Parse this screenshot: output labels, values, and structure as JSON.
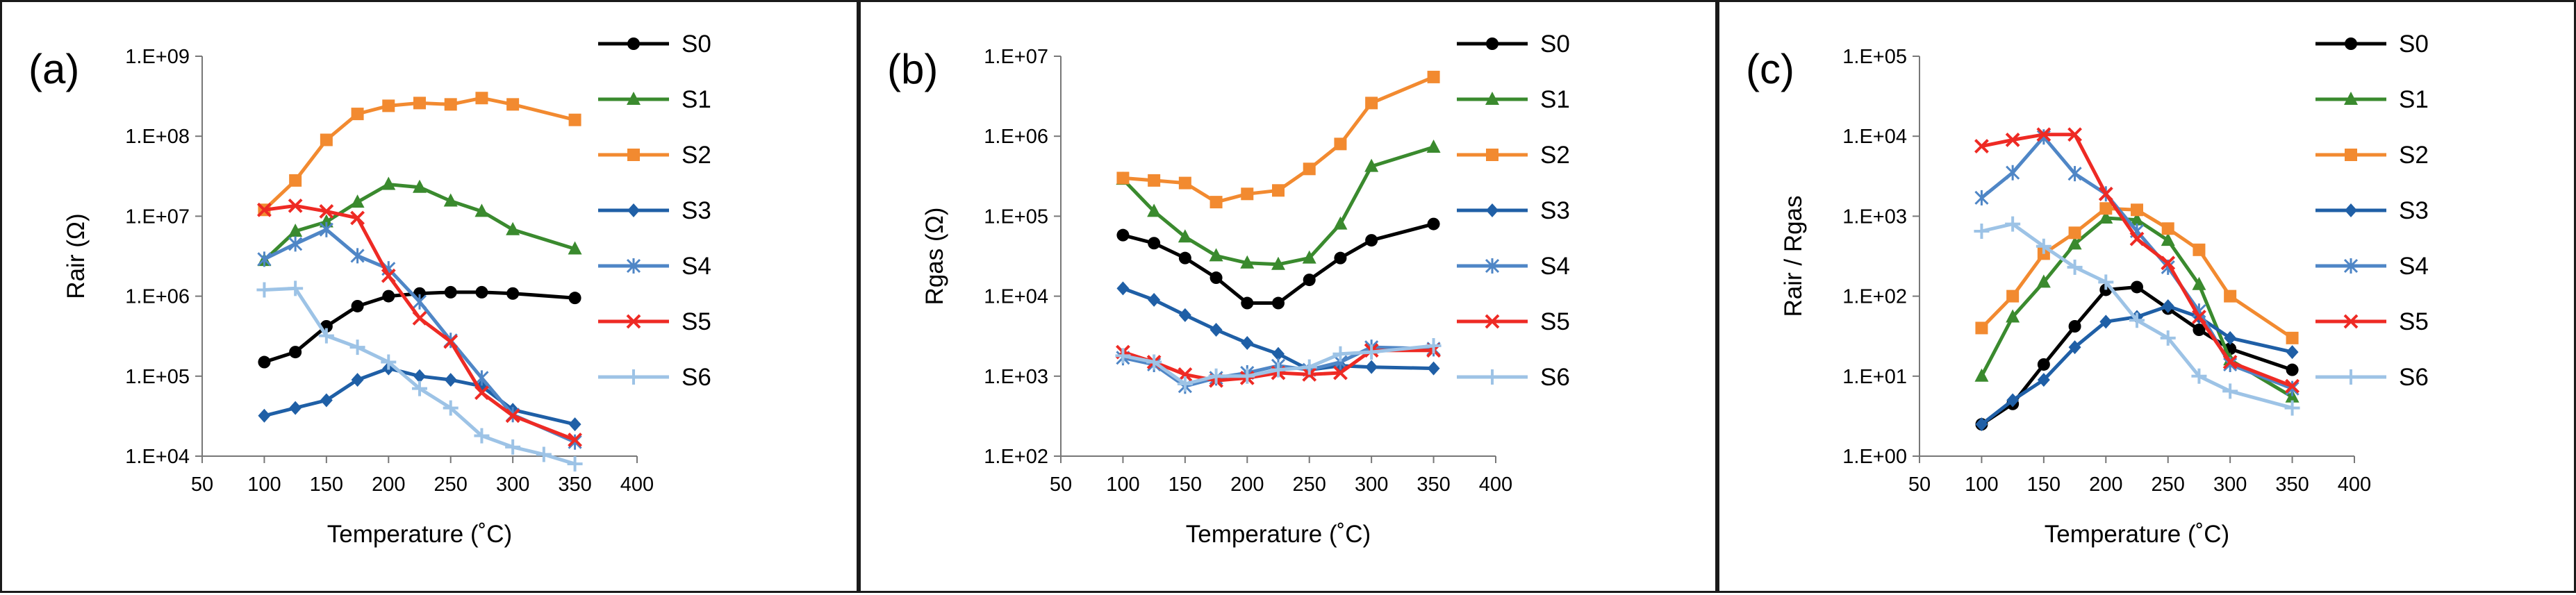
{
  "colors": {
    "S0": "#000000",
    "S1": "#3a8a2e",
    "S2": "#f28a30",
    "S3": "#1f5fa6",
    "S4": "#4f86c6",
    "S5": "#ee2a24",
    "S6": "#9dc3e6"
  },
  "markers": {
    "S0": "circle",
    "S1": "triangle",
    "S2": "square",
    "S3": "diamond",
    "S4": "star",
    "S5": "cross",
    "S6": "plus"
  },
  "chart_data": [
    {
      "type": "line",
      "panel_label": "(a)",
      "xlabel": "Temperature (˚C)",
      "ylabel": "Rair  (Ω)",
      "y_scale": "log",
      "xlim": [
        50,
        400
      ],
      "xticks": [
        50,
        100,
        150,
        200,
        250,
        300,
        350,
        400
      ],
      "ylim": [
        10000,
        1000000000
      ],
      "ytick_labels": [
        "1.E+04",
        "1.E+05",
        "1.E+06",
        "1.E+07",
        "1.E+08",
        "1.E+09"
      ],
      "grid": false,
      "legend": "right",
      "series": [
        {
          "name": "S0",
          "x": [
            100,
            125,
            150,
            175,
            200,
            225,
            250,
            275,
            300,
            350
          ],
          "y": [
            150000,
            200000,
            420000,
            750000,
            1000000,
            1080000,
            1120000,
            1120000,
            1080000,
            950000
          ]
        },
        {
          "name": "S1",
          "x": [
            100,
            125,
            150,
            175,
            200,
            225,
            250,
            275,
            300,
            350
          ],
          "y": [
            2800000,
            6500000,
            8500000,
            15000000,
            25000000,
            23000000,
            15500000,
            11500000,
            6800000,
            3900000
          ]
        },
        {
          "name": "S2",
          "x": [
            100,
            125,
            150,
            175,
            200,
            225,
            250,
            275,
            300,
            350
          ],
          "y": [
            12000000,
            28000000,
            90000000,
            190000000,
            240000000,
            260000000,
            250000000,
            300000000,
            250000000,
            160000000
          ]
        },
        {
          "name": "S3",
          "x": [
            100,
            125,
            150,
            175,
            200,
            225,
            250,
            275,
            300,
            350
          ],
          "y": [
            32000,
            40000,
            50000,
            90000,
            125000,
            100000,
            90000,
            75000,
            38000,
            25000
          ]
        },
        {
          "name": "S4",
          "x": [
            100,
            125,
            150,
            175,
            200,
            225,
            250,
            275,
            300,
            350
          ],
          "y": [
            2900000,
            4500000,
            6800000,
            3200000,
            2200000,
            850000,
            280000,
            95000,
            33000,
            15000
          ]
        },
        {
          "name": "S5",
          "x": [
            100,
            125,
            150,
            175,
            200,
            225,
            250,
            275,
            300,
            350
          ],
          "y": [
            12000000,
            13500000,
            11500000,
            9500000,
            1800000,
            530000,
            270000,
            62000,
            32000,
            16000
          ]
        },
        {
          "name": "S6",
          "x": [
            100,
            125,
            150,
            175,
            200,
            225,
            250,
            275,
            300,
            325,
            350
          ],
          "y": [
            1200000,
            1250000,
            320000,
            230000,
            150000,
            70000,
            40000,
            18000,
            13000,
            10500,
            8000
          ]
        }
      ]
    },
    {
      "type": "line",
      "panel_label": "(b)",
      "xlabel": "Temperature (˚C)",
      "ylabel": "Rgas  (Ω)",
      "y_scale": "log",
      "xlim": [
        50,
        400
      ],
      "xticks": [
        50,
        100,
        150,
        200,
        250,
        300,
        350,
        400
      ],
      "ylim": [
        100,
        10000000
      ],
      "ytick_labels": [
        "1.E+02",
        "1.E+03",
        "1.E+04",
        "1.E+05",
        "1.E+06",
        "1.E+07"
      ],
      "grid": false,
      "legend": "right",
      "series": [
        {
          "name": "S0",
          "x": [
            100,
            125,
            150,
            175,
            200,
            225,
            250,
            275,
            300,
            350
          ],
          "y": [
            58000,
            46000,
            30000,
            17000,
            8200,
            8200,
            16000,
            30000,
            50000,
            80000
          ]
        },
        {
          "name": "S1",
          "x": [
            100,
            125,
            150,
            175,
            200,
            225,
            250,
            275,
            300,
            350
          ],
          "y": [
            290000,
            115000,
            55000,
            32000,
            26000,
            25000,
            30000,
            80000,
            420000,
            730000
          ]
        },
        {
          "name": "S2",
          "x": [
            100,
            125,
            150,
            175,
            200,
            225,
            250,
            275,
            300,
            350
          ],
          "y": [
            300000,
            280000,
            260000,
            150000,
            190000,
            210000,
            390000,
            800000,
            2600000,
            5500000
          ]
        },
        {
          "name": "S3",
          "x": [
            100,
            125,
            150,
            175,
            200,
            225,
            250,
            275,
            300,
            350
          ],
          "y": [
            12500,
            9000,
            5800,
            3800,
            2600,
            1900,
            1200,
            1350,
            1300,
            1250
          ]
        },
        {
          "name": "S4",
          "x": [
            100,
            125,
            150,
            175,
            200,
            225,
            250,
            275,
            300,
            350
          ],
          "y": [
            1700,
            1400,
            750,
            950,
            1100,
            1350,
            1200,
            1500,
            2300,
            2200
          ]
        },
        {
          "name": "S5",
          "x": [
            100,
            125,
            150,
            175,
            200,
            225,
            250,
            275,
            300,
            350
          ],
          "y": [
            2000,
            1500,
            1050,
            880,
            950,
            1100,
            1050,
            1100,
            2100,
            2100
          ]
        },
        {
          "name": "S6",
          "x": [
            100,
            125,
            150,
            175,
            200,
            225,
            250,
            275,
            300,
            350
          ],
          "y": [
            1800,
            1500,
            800,
            1000,
            1000,
            1200,
            1300,
            1900,
            2000,
            2400
          ]
        }
      ]
    },
    {
      "type": "line",
      "panel_label": "(c)",
      "xlabel": "Temperature (˚C)",
      "ylabel": "Rair / Rgas",
      "y_scale": "log",
      "xlim": [
        50,
        400
      ],
      "xticks": [
        50,
        100,
        150,
        200,
        250,
        300,
        350,
        400
      ],
      "ylim": [
        1,
        100000
      ],
      "ytick_labels": [
        "1.E+00",
        "1.E+01",
        "1.E+02",
        "1.E+03",
        "1.E+04",
        "1.E+05"
      ],
      "grid": false,
      "legend": "right",
      "series": [
        {
          "name": "S0",
          "x": [
            100,
            125,
            150,
            175,
            200,
            225,
            250,
            275,
            300,
            350
          ],
          "y": [
            2.5,
            4.5,
            14,
            42,
            120,
            130,
            70,
            38,
            22,
            12
          ]
        },
        {
          "name": "S1",
          "x": [
            100,
            125,
            150,
            175,
            200,
            225,
            250,
            275,
            300,
            350
          ],
          "y": [
            10,
            55,
            150,
            450,
            950,
            900,
            500,
            140,
            16,
            5.5
          ]
        },
        {
          "name": "S2",
          "x": [
            100,
            125,
            150,
            175,
            200,
            225,
            250,
            275,
            300,
            350
          ],
          "y": [
            40,
            100,
            340,
            620,
            1250,
            1200,
            700,
            380,
            100,
            30
          ]
        },
        {
          "name": "S3",
          "x": [
            100,
            125,
            150,
            175,
            200,
            225,
            250,
            275,
            300,
            350
          ],
          "y": [
            2.5,
            5,
            9,
            23,
            48,
            55,
            75,
            55,
            30,
            20
          ]
        },
        {
          "name": "S4",
          "x": [
            100,
            125,
            150,
            175,
            200,
            225,
            250,
            275,
            300,
            350
          ],
          "y": [
            1700,
            3500,
            9800,
            3400,
            1900,
            650,
            230,
            65,
            14,
            7
          ]
        },
        {
          "name": "S5",
          "x": [
            100,
            125,
            150,
            175,
            200,
            225,
            250,
            275,
            300,
            350
          ],
          "y": [
            7500,
            9000,
            10500,
            10500,
            1900,
            520,
            260,
            55,
            15,
            7.5
          ]
        },
        {
          "name": "S6",
          "x": [
            100,
            125,
            150,
            175,
            200,
            225,
            250,
            275,
            300,
            350
          ],
          "y": [
            650,
            800,
            420,
            230,
            150,
            50,
            30,
            10,
            6.5,
            4
          ]
        }
      ]
    }
  ]
}
